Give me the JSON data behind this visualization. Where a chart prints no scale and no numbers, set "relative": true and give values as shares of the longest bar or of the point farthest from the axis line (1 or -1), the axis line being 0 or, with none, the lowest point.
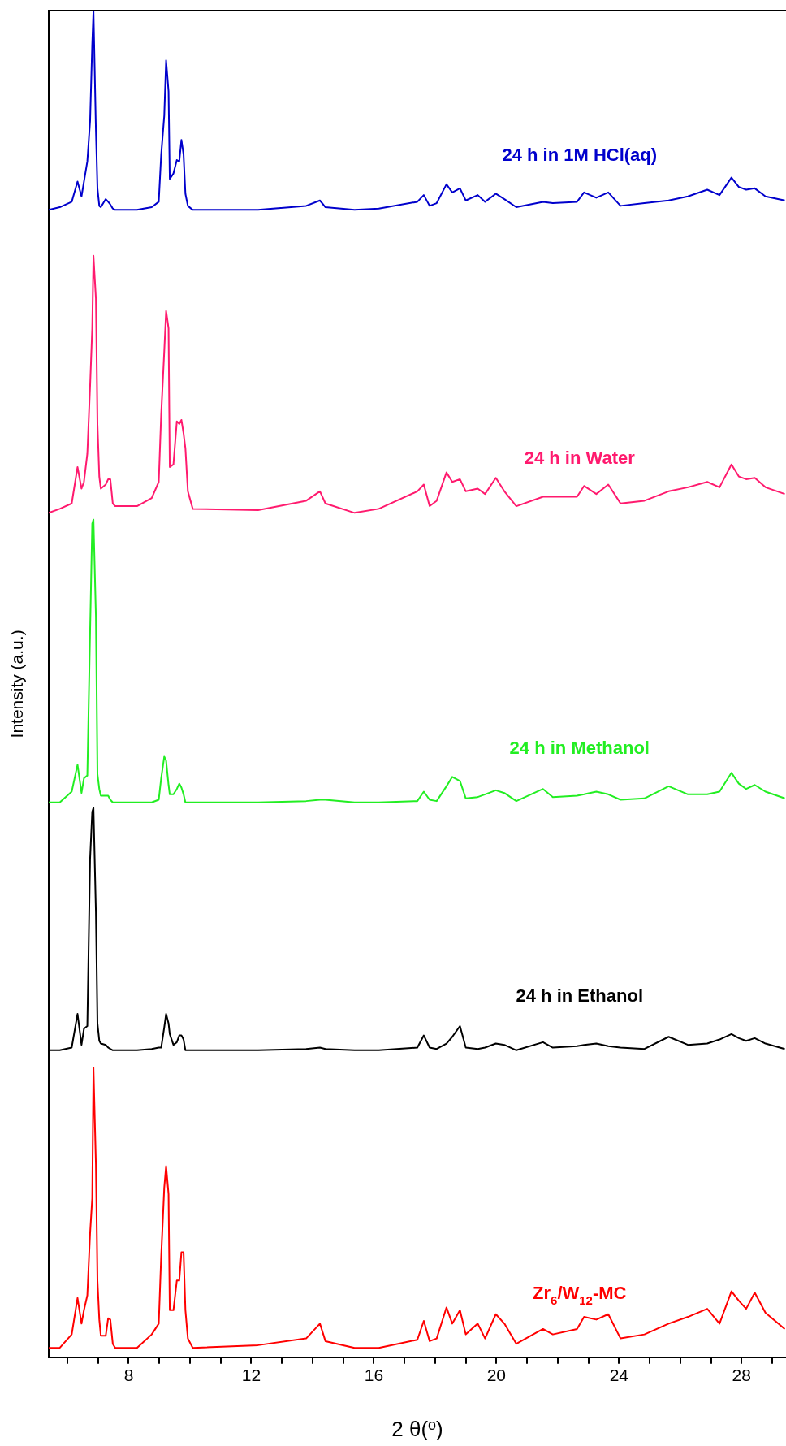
{
  "chart_data": {
    "type": "line",
    "relative": true,
    "xlabel": "2 θ($^{o}$)",
    "ylabel": "Intensity (a.u.)",
    "xlim": [
      5.39,
      29.45
    ],
    "xticks": [
      {
        "value": 6,
        "label": null
      },
      {
        "value": 7,
        "label": null
      },
      8,
      {
        "value": 9,
        "label": null
      },
      {
        "value": 10,
        "label": null
      },
      {
        "value": 11,
        "label": null
      },
      12,
      {
        "value": 13,
        "label": null
      },
      {
        "value": 14,
        "label": null
      },
      {
        "value": 15,
        "label": null
      },
      16,
      {
        "value": 17,
        "label": null
      },
      {
        "value": 18,
        "label": null
      },
      {
        "value": 19,
        "label": null
      },
      20,
      {
        "value": 21,
        "label": null
      },
      {
        "value": 22,
        "label": null
      },
      {
        "value": 23,
        "label": null
      },
      24,
      {
        "value": 25,
        "label": null
      },
      {
        "value": 26,
        "label": null
      },
      {
        "value": 27,
        "label": null
      },
      28,
      {
        "value": 29,
        "label": null
      }
    ],
    "grid": false,
    "legend": false,
    "marker": "none",
    "line_style": "solid",
    "x": [
      5.39,
      5.75,
      6.14,
      6.33,
      6.46,
      6.54,
      6.65,
      6.74,
      6.81,
      6.85,
      6.93,
      6.98,
      7.04,
      7.09,
      7.25,
      7.33,
      7.4,
      7.48,
      7.56,
      8.27,
      8.75,
      8.98,
      9.06,
      9.16,
      9.22,
      9.3,
      9.34,
      9.46,
      9.57,
      9.65,
      9.72,
      9.79,
      9.85,
      9.93,
      10.09,
      12.22,
      13.79,
      14.24,
      14.42,
      15.37,
      16.16,
      17.42,
      17.63,
      17.82,
      18.05,
      18.37,
      18.56,
      18.81,
      19.0,
      19.39,
      19.63,
      19.98,
      20.26,
      20.65,
      21.52,
      21.84,
      22.63,
      22.86,
      23.26,
      23.65,
      24.05,
      24.83,
      25.62,
      26.25,
      26.88,
      27.28,
      27.67,
      27.91,
      28.15,
      28.43,
      28.78,
      29.41
    ],
    "series": [
      {
        "name": "24 h in 1M HCl(aq)",
        "color": "#0000cc",
        "values": [
          0.852,
          0.854,
          0.858,
          0.873,
          0.862,
          0.873,
          0.888,
          0.918,
          0.975,
          1,
          0.911,
          0.868,
          0.855,
          0.854,
          0.86,
          0.858,
          0.856,
          0.853,
          0.852,
          0.852,
          0.854,
          0.858,
          0.893,
          0.922,
          0.963,
          0.94,
          0.875,
          0.879,
          0.889,
          0.888,
          0.904,
          0.893,
          0.864,
          0.855,
          0.852,
          0.852,
          0.855,
          0.859,
          0.854,
          0.852,
          0.853,
          0.858,
          0.863,
          0.855,
          0.857,
          0.871,
          0.865,
          0.868,
          0.859,
          0.863,
          0.858,
          0.864,
          0.86,
          0.854,
          0.858,
          0.857,
          0.858,
          0.865,
          0.861,
          0.865,
          0.855,
          0.857,
          0.859,
          0.862,
          0.867,
          0.863,
          0.876,
          0.869,
          0.867,
          0.868,
          0.862,
          0.859
        ]
      },
      {
        "name": "24 h in Water",
        "color": "#ff1a6e",
        "values": [
          0.627,
          0.63,
          0.634,
          0.661,
          0.645,
          0.65,
          0.671,
          0.721,
          0.764,
          0.818,
          0.786,
          0.693,
          0.654,
          0.645,
          0.648,
          0.652,
          0.652,
          0.634,
          0.632,
          0.632,
          0.638,
          0.65,
          0.7,
          0.747,
          0.777,
          0.764,
          0.661,
          0.663,
          0.695,
          0.693,
          0.696,
          0.686,
          0.675,
          0.643,
          0.63,
          0.629,
          0.636,
          0.643,
          0.634,
          0.627,
          0.63,
          0.643,
          0.648,
          0.632,
          0.636,
          0.657,
          0.65,
          0.652,
          0.643,
          0.645,
          0.641,
          0.653,
          0.643,
          0.632,
          0.639,
          0.639,
          0.639,
          0.647,
          0.641,
          0.648,
          0.634,
          0.636,
          0.643,
          0.646,
          0.65,
          0.646,
          0.663,
          0.654,
          0.652,
          0.653,
          0.646,
          0.641
        ]
      },
      {
        "name": "24 h in Methanol",
        "color": "#22ee22",
        "values": [
          0.412,
          0.412,
          0.42,
          0.44,
          0.419,
          0.43,
          0.432,
          0.539,
          0.619,
          0.622,
          0.55,
          0.433,
          0.422,
          0.417,
          0.417,
          0.417,
          0.414,
          0.412,
          0.412,
          0.412,
          0.412,
          0.414,
          0.43,
          0.446,
          0.443,
          0.425,
          0.418,
          0.418,
          0.422,
          0.426,
          0.423,
          0.418,
          0.412,
          0.412,
          0.412,
          0.412,
          0.413,
          0.414,
          0.414,
          0.412,
          0.412,
          0.413,
          0.42,
          0.414,
          0.413,
          0.424,
          0.431,
          0.428,
          0.415,
          0.416,
          0.418,
          0.421,
          0.419,
          0.413,
          0.422,
          0.416,
          0.417,
          0.418,
          0.42,
          0.418,
          0.414,
          0.415,
          0.424,
          0.418,
          0.418,
          0.42,
          0.434,
          0.426,
          0.422,
          0.425,
          0.42,
          0.415
        ]
      },
      {
        "name": "24 h in Ethanol",
        "color": "#000000",
        "values": [
          0.228,
          0.228,
          0.23,
          0.255,
          0.232,
          0.244,
          0.246,
          0.37,
          0.405,
          0.408,
          0.33,
          0.248,
          0.235,
          0.233,
          0.232,
          0.23,
          0.229,
          0.228,
          0.228,
          0.228,
          0.229,
          0.23,
          0.23,
          0.245,
          0.255,
          0.248,
          0.24,
          0.232,
          0.234,
          0.239,
          0.239,
          0.236,
          0.228,
          0.228,
          0.228,
          0.228,
          0.229,
          0.23,
          0.229,
          0.228,
          0.228,
          0.23,
          0.239,
          0.23,
          0.229,
          0.233,
          0.238,
          0.246,
          0.23,
          0.229,
          0.23,
          0.233,
          0.232,
          0.228,
          0.234,
          0.23,
          0.231,
          0.232,
          0.233,
          0.231,
          0.23,
          0.229,
          0.238,
          0.232,
          0.233,
          0.236,
          0.24,
          0.237,
          0.235,
          0.237,
          0.233,
          0.229
        ]
      },
      {
        "name": "Zr$_{6}$/W$_{12}$-MC",
        "color": "#ff0000",
        "values": [
          0.007,
          0.007,
          0.017,
          0.044,
          0.025,
          0.035,
          0.046,
          0.092,
          0.118,
          0.215,
          0.143,
          0.057,
          0.028,
          0.016,
          0.016,
          0.029,
          0.028,
          0.01,
          0.007,
          0.007,
          0.017,
          0.025,
          0.075,
          0.126,
          0.142,
          0.121,
          0.035,
          0.035,
          0.057,
          0.057,
          0.078,
          0.078,
          0.035,
          0.014,
          0.007,
          0.009,
          0.014,
          0.025,
          0.012,
          0.007,
          0.007,
          0.013,
          0.027,
          0.012,
          0.014,
          0.037,
          0.025,
          0.035,
          0.017,
          0.025,
          0.014,
          0.032,
          0.025,
          0.01,
          0.021,
          0.017,
          0.021,
          0.03,
          0.028,
          0.032,
          0.014,
          0.017,
          0.025,
          0.03,
          0.036,
          0.025,
          0.049,
          0.042,
          0.036,
          0.048,
          0.033,
          0.021
        ]
      }
    ]
  }
}
